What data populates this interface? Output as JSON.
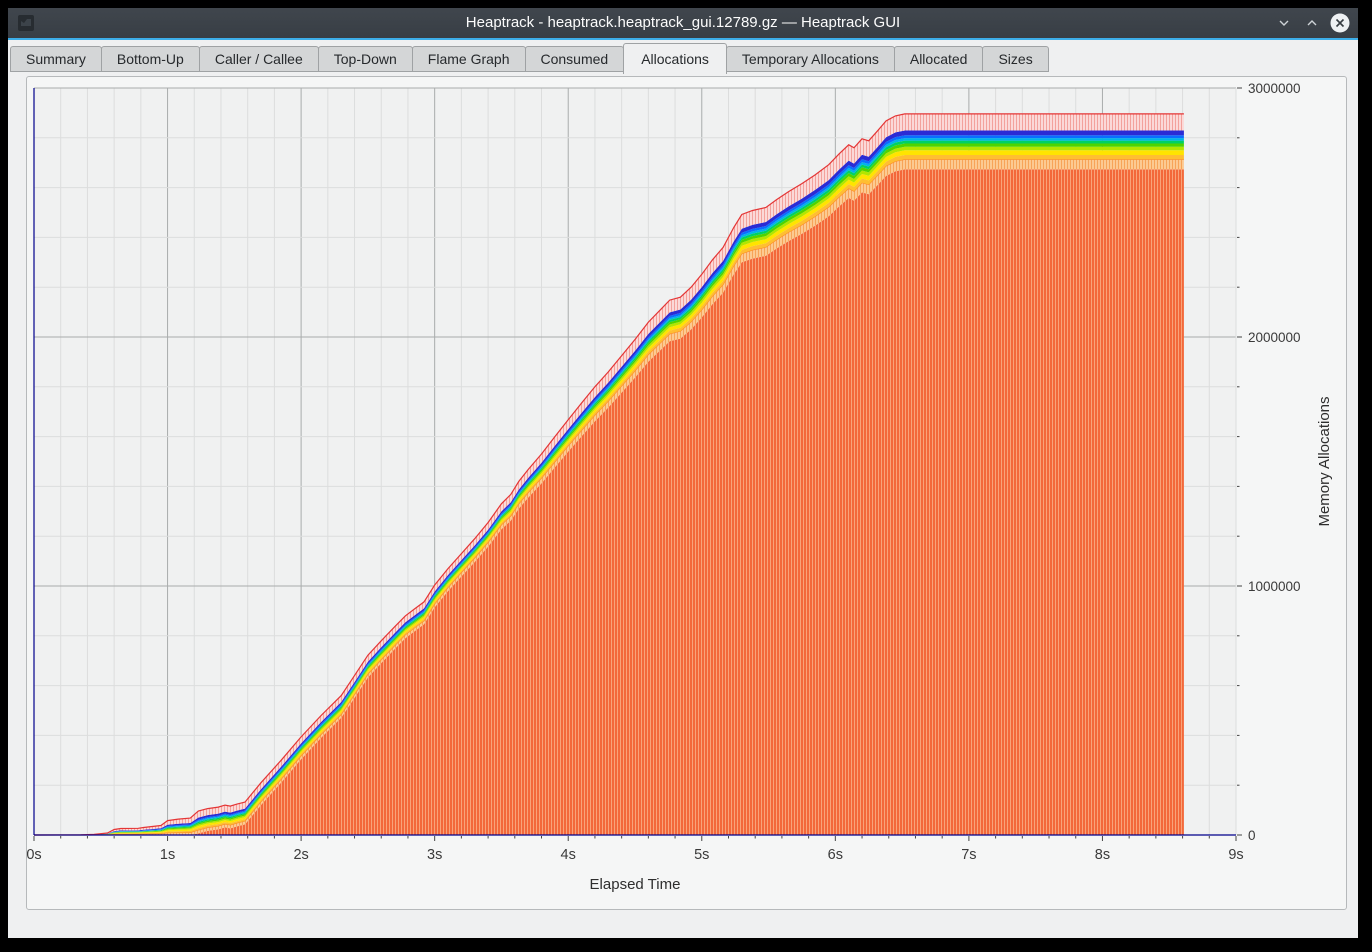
{
  "window": {
    "title": "Heaptrack - heaptrack.heaptrack_gui.12789.gz — Heaptrack GUI",
    "controls": [
      {
        "name": "minimize",
        "icon": "chevron-down-icon"
      },
      {
        "name": "maximize",
        "icon": "chevron-up-icon"
      },
      {
        "name": "close",
        "icon": "close-x-icon"
      }
    ]
  },
  "tabs": [
    {
      "label": "Summary",
      "active": false
    },
    {
      "label": "Bottom-Up",
      "active": false
    },
    {
      "label": "Caller / Callee",
      "active": false
    },
    {
      "label": "Top-Down",
      "active": false
    },
    {
      "label": "Flame Graph",
      "active": false
    },
    {
      "label": "Consumed",
      "active": false
    },
    {
      "label": "Allocations",
      "active": true
    },
    {
      "label": "Temporary Allocations",
      "active": false
    },
    {
      "label": "Allocated",
      "active": false
    },
    {
      "label": "Sizes",
      "active": false
    }
  ],
  "chart_data": {
    "type": "area",
    "stacked": true,
    "title": "",
    "xlabel": "Elapsed Time",
    "ylabel": "Memory Allocations",
    "xlim": [
      0,
      9
    ],
    "ylim": [
      0,
      3000000
    ],
    "x_tick_labels": [
      "0s",
      "1s",
      "2s",
      "3s",
      "4s",
      "5s",
      "6s",
      "7s",
      "8s",
      "9s"
    ],
    "x_minor_step_s": 0.2,
    "y_tick_labels": [
      "0",
      "1000000",
      "2000000",
      "3000000"
    ],
    "y_major_step": 1000000,
    "y_minor_step": 200000,
    "grid": true,
    "legend": "none",
    "data_end_s": 8.61,
    "total_series": {
      "name": "total memory allocations (top of stack)",
      "points": [
        [
          0,
          0
        ],
        [
          0.35,
          1000
        ],
        [
          0.45,
          3000
        ],
        [
          0.55,
          8000
        ],
        [
          0.6,
          22000
        ],
        [
          0.65,
          26000
        ],
        [
          0.78,
          27000
        ],
        [
          0.82,
          30000
        ],
        [
          0.95,
          38000
        ],
        [
          1.0,
          58000
        ],
        [
          1.08,
          64000
        ],
        [
          1.17,
          68000
        ],
        [
          1.23,
          96000
        ],
        [
          1.3,
          106000
        ],
        [
          1.38,
          112000
        ],
        [
          1.43,
          120000
        ],
        [
          1.47,
          116000
        ],
        [
          1.52,
          124000
        ],
        [
          1.58,
          132000
        ],
        [
          1.7,
          210000
        ],
        [
          1.85,
          300000
        ],
        [
          2.0,
          394000
        ],
        [
          2.15,
          480000
        ],
        [
          2.3,
          560000
        ],
        [
          2.4,
          640000
        ],
        [
          2.5,
          722000
        ],
        [
          2.6,
          780000
        ],
        [
          2.7,
          836000
        ],
        [
          2.78,
          880000
        ],
        [
          2.85,
          908000
        ],
        [
          2.92,
          936000
        ],
        [
          3.0,
          1004000
        ],
        [
          3.1,
          1070000
        ],
        [
          3.2,
          1130000
        ],
        [
          3.3,
          1190000
        ],
        [
          3.4,
          1255000
        ],
        [
          3.5,
          1330000
        ],
        [
          3.57,
          1368000
        ],
        [
          3.63,
          1420000
        ],
        [
          3.7,
          1468000
        ],
        [
          3.8,
          1530000
        ],
        [
          3.9,
          1600000
        ],
        [
          4.0,
          1668000
        ],
        [
          4.1,
          1735000
        ],
        [
          4.2,
          1800000
        ],
        [
          4.3,
          1860000
        ],
        [
          4.4,
          1925000
        ],
        [
          4.5,
          1990000
        ],
        [
          4.6,
          2060000
        ],
        [
          4.7,
          2115000
        ],
        [
          4.76,
          2148000
        ],
        [
          4.84,
          2160000
        ],
        [
          4.92,
          2200000
        ],
        [
          5.0,
          2252000
        ],
        [
          5.08,
          2310000
        ],
        [
          5.16,
          2360000
        ],
        [
          5.24,
          2440000
        ],
        [
          5.3,
          2492000
        ],
        [
          5.38,
          2508000
        ],
        [
          5.48,
          2520000
        ],
        [
          5.56,
          2552000
        ],
        [
          5.65,
          2584000
        ],
        [
          5.75,
          2616000
        ],
        [
          5.85,
          2652000
        ],
        [
          5.95,
          2692000
        ],
        [
          6.03,
          2736000
        ],
        [
          6.1,
          2772000
        ],
        [
          6.14,
          2760000
        ],
        [
          6.2,
          2796000
        ],
        [
          6.25,
          2788000
        ],
        [
          6.31,
          2824000
        ],
        [
          6.38,
          2868000
        ],
        [
          6.45,
          2888000
        ],
        [
          6.52,
          2896000
        ],
        [
          8.61,
          2896000
        ]
      ]
    },
    "bands_top_to_bottom": [
      {
        "name": "band-pink-hatched",
        "frac": 0.023,
        "min": 26000,
        "fill": "pattern:pink",
        "stroke": "#e43535"
      },
      {
        "name": "band-dark-blue",
        "frac": 0.0065,
        "min": 8000,
        "fill": "#2b2bd5"
      },
      {
        "name": "band-azure",
        "frac": 0.004,
        "min": 5000,
        "fill": "#0a6eff"
      },
      {
        "name": "band-cyan",
        "frac": 0.0035,
        "min": 4500,
        "fill": "#00b4e8"
      },
      {
        "name": "band-spring-green",
        "frac": 0.004,
        "min": 5000,
        "fill": "#00d164"
      },
      {
        "name": "band-green",
        "frac": 0.0045,
        "min": 5500,
        "fill": "#4fd400"
      },
      {
        "name": "band-yellow-green",
        "frac": 0.005,
        "min": 6000,
        "fill": "#b2e600"
      },
      {
        "name": "band-yellow",
        "frac": 0.0065,
        "min": 8000,
        "fill": "#ffe400"
      },
      {
        "name": "band-amber",
        "frac": 0.006,
        "min": 7500,
        "fill": "#ffbe32"
      },
      {
        "name": "band-orange-hatched",
        "frac": 0.014,
        "min": 14000,
        "fill": "pattern:orangeLight",
        "stroke": "#fb8c2c"
      },
      {
        "name": "band-orange-base",
        "frac": 0.923,
        "min": 0,
        "fill": "pattern:orange"
      }
    ],
    "colors": {
      "axis_line": "#00008b",
      "grid_minor": "#dcdddd",
      "grid_major": "#a9acac",
      "plot_background": "#f0f1f1",
      "tick_text": "#3a3a3a",
      "orange_dark": "#f3683a",
      "orange_light_stripe": "#f9a379",
      "pink_bg": "#fbd9d8",
      "pink_stripe": "#f3a29c",
      "hatch_orange_bg": "#fcca92",
      "hatch_orange_stripe": "#f7a458"
    }
  },
  "theme": {
    "accent": "#3daee9",
    "titlebar": "#383e45",
    "window_bg": "#eff0f1"
  }
}
